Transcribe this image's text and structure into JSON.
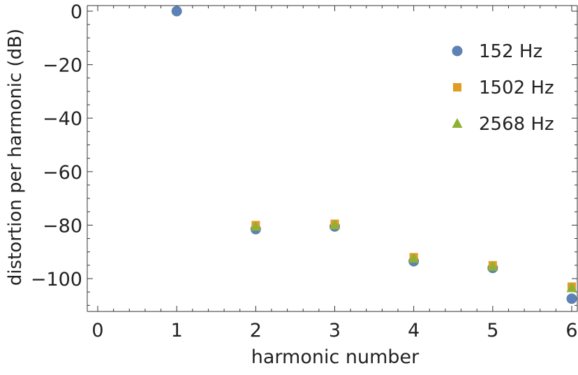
{
  "chart_data": {
    "type": "scatter",
    "title": "",
    "xlabel": "harmonic number",
    "ylabel": "distortion per harmonic (dB)",
    "xlim": [
      -0.1,
      6.1
    ],
    "ylim": [
      -112,
      2
    ],
    "x_ticks": [
      0,
      1,
      2,
      3,
      4,
      5,
      6
    ],
    "y_ticks": [
      0,
      -20,
      -40,
      -60,
      -80,
      -100
    ],
    "x_tick_labels": [
      "0",
      "1",
      "2",
      "3",
      "4",
      "5",
      "6"
    ],
    "y_tick_labels": [
      "0",
      "−20",
      "−40",
      "−60",
      "−80",
      "−100"
    ],
    "grid": false,
    "legend_position": "top-right",
    "series": [
      {
        "name": "152 Hz",
        "marker": "circle",
        "color": "#5e81b5",
        "x": [
          1,
          2,
          3,
          4,
          5,
          6
        ],
        "y": [
          0,
          -81.5,
          -80.5,
          -93.5,
          -96,
          -107.5
        ]
      },
      {
        "name": "1502 Hz",
        "marker": "square",
        "color": "#e19c24",
        "x": [
          2,
          3,
          4,
          5,
          6
        ],
        "y": [
          -80,
          -79.5,
          -92,
          -95,
          -103
        ]
      },
      {
        "name": "2568 Hz",
        "marker": "triangle",
        "color": "#8fb032",
        "x": [
          2,
          3,
          4,
          5,
          6
        ],
        "y": [
          -80.5,
          -80,
          -92.5,
          -95.5,
          -103.5
        ]
      }
    ]
  }
}
